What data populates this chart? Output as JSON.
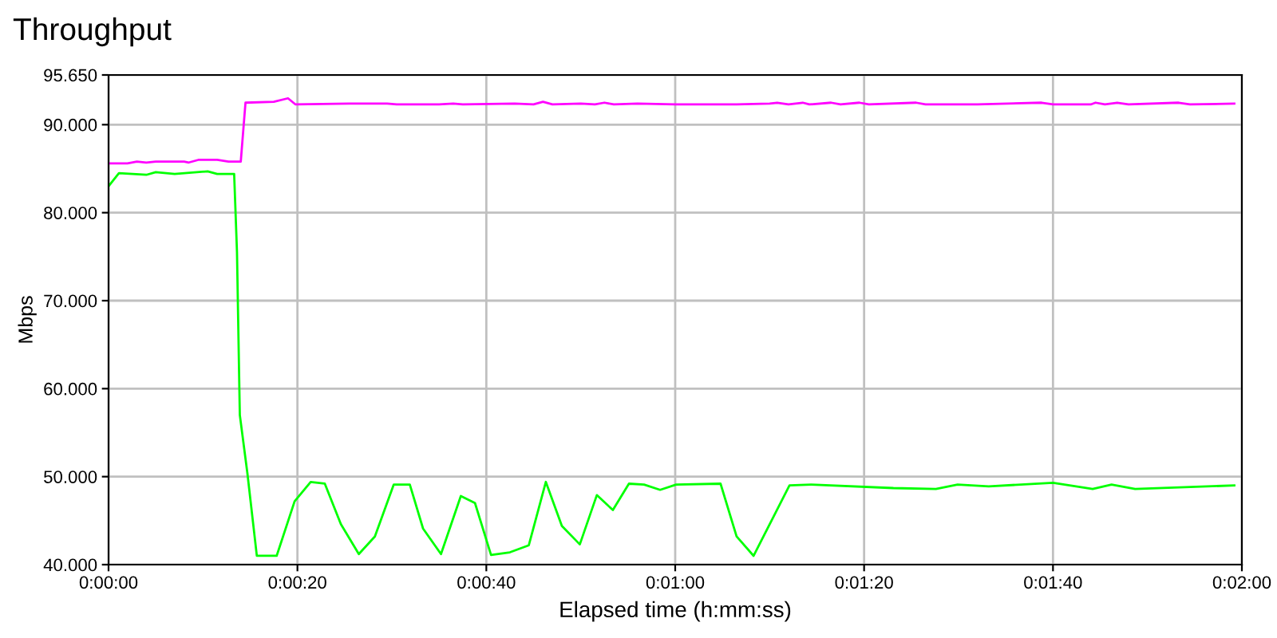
{
  "chart_data": {
    "type": "line",
    "title": "Throughput",
    "xlabel": "Elapsed time (h:mm:ss)",
    "ylabel": "Mbps",
    "xlim": [
      0,
      120
    ],
    "xticks": [
      {
        "value": 0,
        "label": "0:00:00"
      },
      {
        "value": 20,
        "label": "0:00:20"
      },
      {
        "value": 40,
        "label": "0:00:40"
      },
      {
        "value": 60,
        "label": "0:01:00"
      },
      {
        "value": 80,
        "label": "0:01:20"
      },
      {
        "value": 100,
        "label": "0:01:40"
      },
      {
        "value": 120,
        "label": "0:02:00"
      }
    ],
    "ylim": [
      40,
      95.65
    ],
    "yticks": [
      {
        "value": 40,
        "label": "40.000"
      },
      {
        "value": 50,
        "label": "50.000"
      },
      {
        "value": 60,
        "label": "60.000"
      },
      {
        "value": 70,
        "label": "70.000"
      },
      {
        "value": 80,
        "label": "80.000"
      },
      {
        "value": 90,
        "label": "90.000"
      },
      {
        "value": 95.65,
        "label": "95.650"
      }
    ],
    "grid": true,
    "legend": false,
    "marker": "none",
    "line_style": "solid",
    "series": [
      {
        "color": "#ff00ff",
        "x": [
          0,
          2,
          3,
          4,
          5,
          8,
          8.5,
          9.5,
          11.5,
          12.7,
          14,
          14.5,
          17.5,
          19,
          19.8,
          25.5,
          29.5,
          30.5,
          35,
          36.5,
          37.5,
          43,
          45,
          46,
          47,
          50,
          51.5,
          52.5,
          53.5,
          56,
          60,
          66.5,
          70,
          70.8,
          72,
          73.5,
          74.2,
          76.5,
          77.5,
          79.5,
          80.5,
          85.5,
          86.5,
          92,
          98.8,
          100,
          104,
          104.5,
          105.5,
          106.8,
          108,
          113.3,
          114.5,
          119.2
        ],
        "values": [
          85.6,
          85.6,
          85.8,
          85.7,
          85.8,
          85.8,
          85.7,
          86.0,
          86.0,
          85.8,
          85.8,
          92.5,
          92.6,
          93.0,
          92.3,
          92.4,
          92.4,
          92.3,
          92.3,
          92.4,
          92.3,
          92.4,
          92.3,
          92.6,
          92.3,
          92.4,
          92.3,
          92.5,
          92.3,
          92.4,
          92.3,
          92.3,
          92.4,
          92.5,
          92.3,
          92.5,
          92.3,
          92.5,
          92.3,
          92.5,
          92.3,
          92.5,
          92.3,
          92.3,
          92.5,
          92.3,
          92.3,
          92.5,
          92.3,
          92.5,
          92.3,
          92.5,
          92.3,
          92.4
        ]
      },
      {
        "color": "#00ff00",
        "x": [
          0,
          1.1,
          4,
          5,
          7,
          10.5,
          11.5,
          13.3,
          13.6,
          13.9,
          14.7,
          15.7,
          17.8,
          19.7,
          21.4,
          22.9,
          24.6,
          26.5,
          28.2,
          30.2,
          31.9,
          33.3,
          35.2,
          37.3,
          38.8,
          40.5,
          42.5,
          44.5,
          46.3,
          48.0,
          49.9,
          51.7,
          53.4,
          55.1,
          56.7,
          58.4,
          60.1,
          64.8,
          66.5,
          68.3,
          72.1,
          74.4,
          83.1,
          87.6,
          89.9,
          93.2,
          100,
          104.2,
          106.2,
          108.7,
          119.2
        ],
        "values": [
          83.0,
          84.5,
          84.3,
          84.6,
          84.4,
          84.7,
          84.4,
          84.4,
          75.5,
          57.0,
          50.4,
          41.0,
          41.0,
          47.2,
          49.4,
          49.2,
          44.6,
          41.2,
          43.2,
          49.1,
          49.1,
          44.1,
          41.2,
          47.8,
          47.0,
          41.1,
          41.4,
          42.2,
          49.4,
          44.4,
          42.3,
          47.9,
          46.2,
          49.2,
          49.1,
          48.5,
          49.1,
          49.2,
          43.2,
          41.0,
          49.0,
          49.1,
          48.7,
          48.6,
          49.1,
          48.9,
          49.3,
          48.6,
          49.1,
          48.6,
          49.0
        ]
      }
    ]
  }
}
